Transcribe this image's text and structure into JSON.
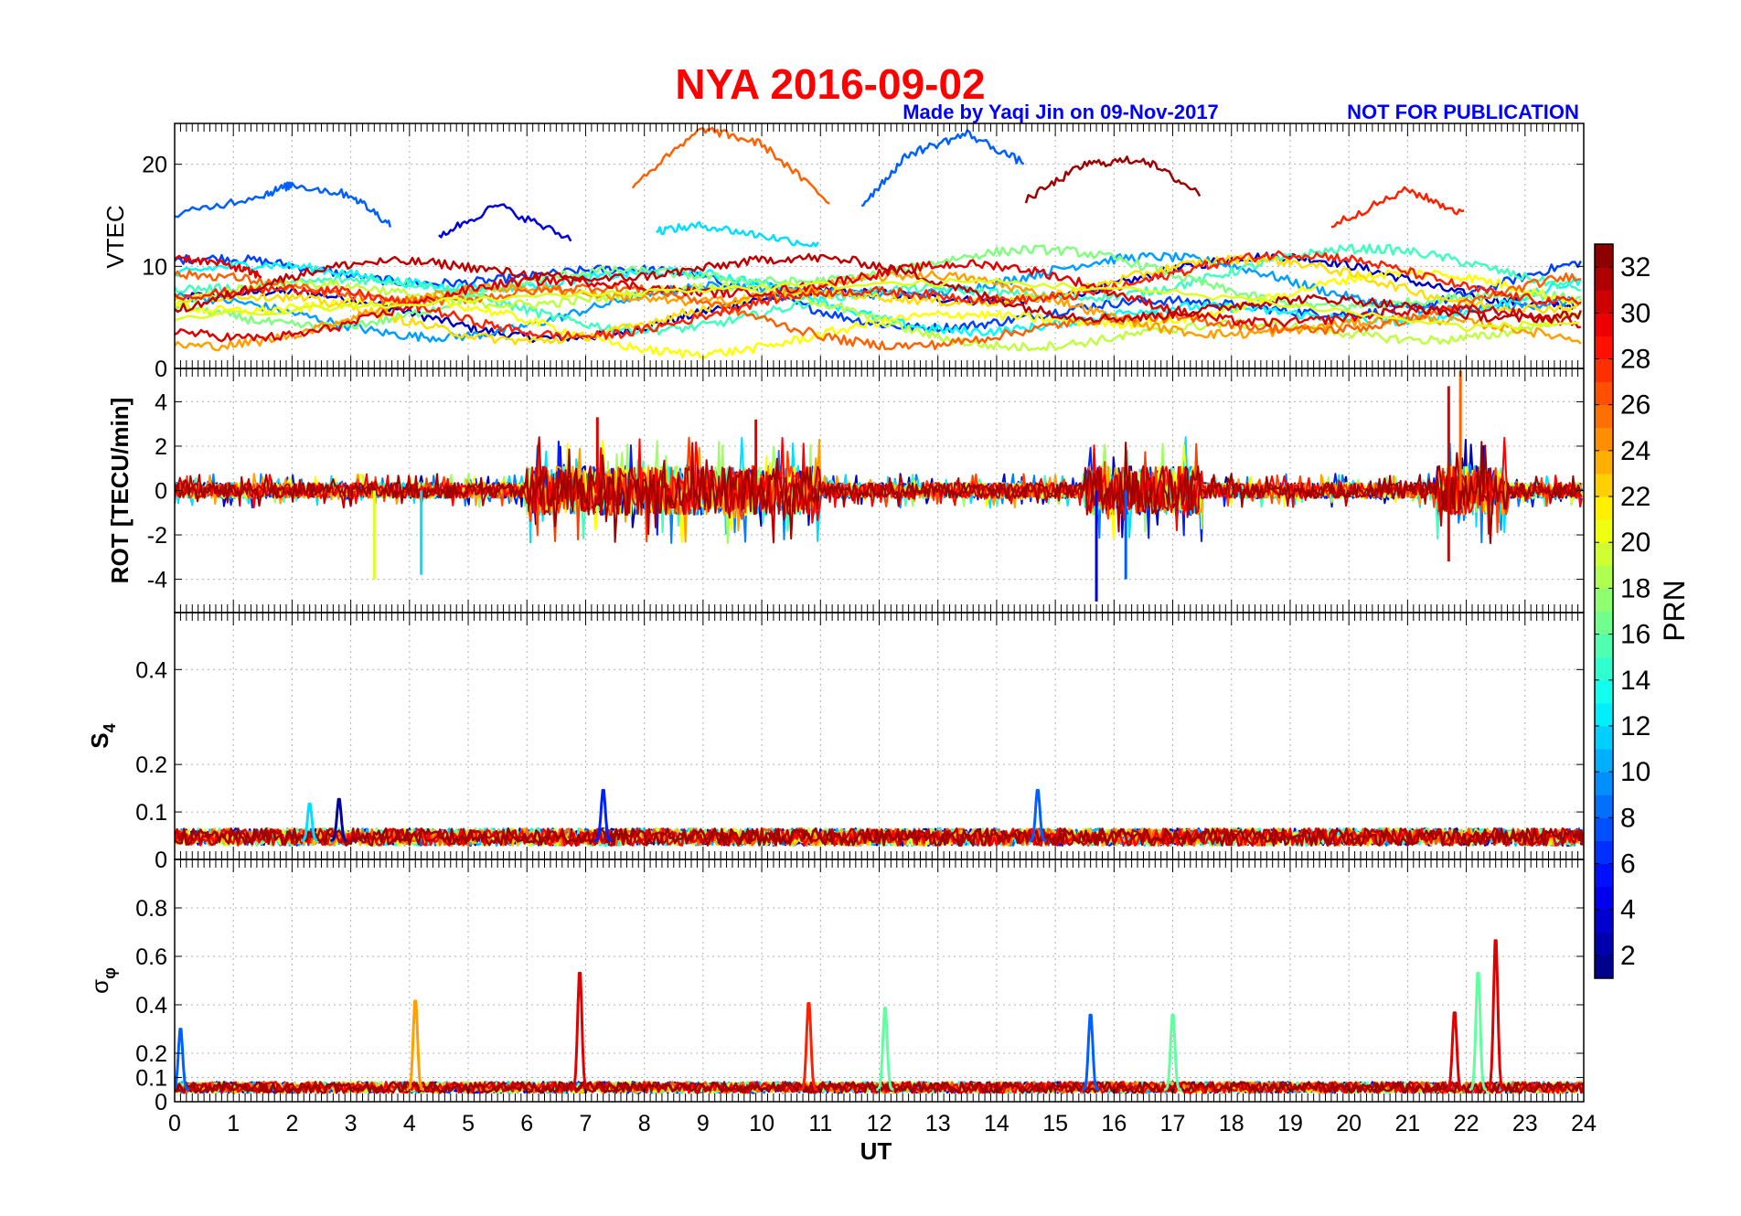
{
  "title": "NYA   2016-09-02",
  "credit": "Made by Yaqi Jin on 09-Nov-2017",
  "notice": "NOT FOR PUBLICATION",
  "chart_data": [
    {
      "type": "line",
      "panel": "VTEC",
      "ylabel": "VTEC",
      "ylim": [
        0,
        24
      ],
      "yticks": [
        "0",
        "10",
        "20"
      ],
      "xlim": [
        0,
        24
      ],
      "grid": true,
      "series": [
        {
          "prn": 8,
          "x": [
            0,
            1.5,
            2,
            3,
            3.7
          ],
          "y": [
            15,
            17,
            18,
            17,
            14
          ]
        },
        {
          "prn": 12,
          "x": [
            8.2,
            9,
            10,
            11
          ],
          "y": [
            13.5,
            14,
            13,
            12
          ]
        },
        {
          "prn": 26,
          "x": [
            7.8,
            9,
            10,
            11.2
          ],
          "y": [
            18,
            23.5,
            22,
            16
          ]
        },
        {
          "prn": 8,
          "x": [
            11.7,
            12.5,
            13.5,
            14.5
          ],
          "y": [
            16,
            21,
            23,
            20
          ]
        },
        {
          "prn": 32,
          "x": [
            14.5,
            15.5,
            16.5,
            17.5
          ],
          "y": [
            16.5,
            20,
            20.5,
            17
          ]
        },
        {
          "prn": 28,
          "x": [
            19.7,
            21,
            22
          ],
          "y": [
            14,
            17.5,
            15
          ]
        },
        {
          "prn": 4,
          "x": [
            4.5,
            5.5,
            6.8
          ],
          "y": [
            13,
            16,
            12.5
          ]
        },
        {
          "prn": 30,
          "x": [
            0,
            1,
            1.5
          ],
          "y": [
            11,
            10,
            9
          ]
        },
        {
          "prn": 20,
          "x": [
            0,
            6,
            10,
            14,
            18,
            22,
            24
          ],
          "y": [
            5,
            7,
            8,
            8.5,
            7,
            4,
            4.5
          ]
        }
      ]
    },
    {
      "type": "line",
      "panel": "ROT",
      "ylabel": "ROT [TECU/min]",
      "ylim": [
        -5.5,
        5.5
      ],
      "yticks": [
        "-4",
        "-2",
        "0",
        "2",
        "4"
      ],
      "xlim": [
        0,
        24
      ],
      "grid": true,
      "spikes": [
        {
          "x": 3.4,
          "y": -4,
          "prn": 20
        },
        {
          "x": 4.2,
          "y": -3.8,
          "prn": 12
        },
        {
          "x": 7.2,
          "y": 3.3,
          "prn": 30
        },
        {
          "x": 9.9,
          "y": 3.2,
          "prn": 30
        },
        {
          "x": 15.7,
          "y": -5,
          "prn": 4
        },
        {
          "x": 16.2,
          "y": -4,
          "prn": 8
        },
        {
          "x": 21.7,
          "y": 4.7,
          "prn": 30
        },
        {
          "x": 21.9,
          "y": 5.4,
          "prn": 26
        },
        {
          "x": 21.7,
          "y": -3.2,
          "prn": 30
        }
      ]
    },
    {
      "type": "line",
      "panel": "S4",
      "ylabel": "S4",
      "ylim": [
        0,
        0.52
      ],
      "yticks": [
        "0",
        "0.1",
        "0.2",
        "0.4"
      ],
      "xlim": [
        0,
        24
      ],
      "grid": true,
      "baseline": 0.04,
      "peaks": [
        {
          "x": 2.8,
          "y": 0.13,
          "prn": 2
        },
        {
          "x": 7.3,
          "y": 0.15,
          "prn": 6
        },
        {
          "x": 14.7,
          "y": 0.15,
          "prn": 8
        },
        {
          "x": 2.3,
          "y": 0.12,
          "prn": 12
        }
      ]
    },
    {
      "type": "line",
      "panel": "sigma_phi",
      "ylabel": "σφ",
      "ylim": [
        0,
        1
      ],
      "yticks": [
        "0",
        "0.1",
        "0.2",
        "0.4",
        "0.6",
        "0.8"
      ],
      "xlim": [
        0,
        24
      ],
      "xticks": [
        "0",
        "1",
        "2",
        "3",
        "4",
        "5",
        "6",
        "7",
        "8",
        "9",
        "10",
        "11",
        "12",
        "13",
        "14",
        "15",
        "16",
        "17",
        "18",
        "19",
        "20",
        "21",
        "22",
        "23",
        "24"
      ],
      "xlabel": "UT",
      "grid": true,
      "baseline": 0.05,
      "peaks": [
        {
          "x": 4.1,
          "y": 0.43,
          "prn": 24
        },
        {
          "x": 6.9,
          "y": 0.55,
          "prn": 30
        },
        {
          "x": 12.1,
          "y": 0.4,
          "prn": 16
        },
        {
          "x": 15.6,
          "y": 0.37,
          "prn": 8
        },
        {
          "x": 17,
          "y": 0.37,
          "prn": 16
        },
        {
          "x": 21.8,
          "y": 0.38,
          "prn": 30
        },
        {
          "x": 22.2,
          "y": 0.55,
          "prn": 16
        },
        {
          "x": 22.5,
          "y": 0.69,
          "prn": 30
        },
        {
          "x": 0.1,
          "y": 0.31,
          "prn": 8
        },
        {
          "x": 10.8,
          "y": 0.42,
          "prn": 28
        }
      ]
    }
  ],
  "colorbar": {
    "label": "PRN",
    "ticks": [
      "2",
      "4",
      "6",
      "8",
      "10",
      "12",
      "14",
      "16",
      "18",
      "20",
      "22",
      "24",
      "26",
      "28",
      "30",
      "32"
    ],
    "min": 1,
    "max": 33
  }
}
